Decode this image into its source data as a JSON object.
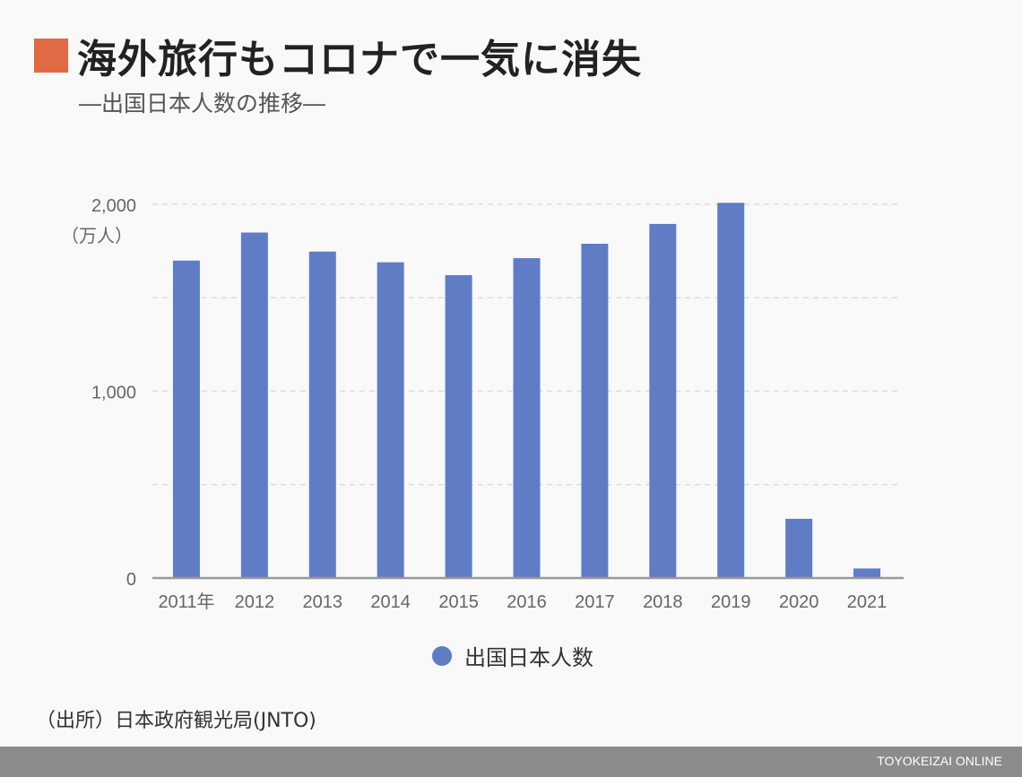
{
  "header": {
    "title": "海外旅行もコロナで一気に消失",
    "subtitle": "―出国日本人数の推移―"
  },
  "chart_data": {
    "type": "bar",
    "categories": [
      "2011年",
      "2012",
      "2013",
      "2014",
      "2015",
      "2016",
      "2017",
      "2018",
      "2019",
      "2020",
      "2021"
    ],
    "series": [
      {
        "name": "出国日本人数",
        "values": [
          1699,
          1849,
          1747,
          1690,
          1621,
          1712,
          1789,
          1895,
          2008,
          317,
          51
        ]
      }
    ],
    "ylim": [
      0,
      2000
    ],
    "yticks": [
      0,
      500,
      1000,
      1500,
      2000
    ],
    "ytick_labels": [
      "0",
      "",
      "1,000",
      "",
      "2,000"
    ],
    "yunit": "（万人）",
    "grid": true,
    "legend_position": "bottom-center",
    "bar_color": "#5f7cc5"
  },
  "source_note": "（出所）日本政府観光局(JNTO)",
  "footer": {
    "brand": "TOYOKEIZAI ONLINE"
  },
  "colors": {
    "accent": "#e06a44",
    "axis": "#999999",
    "grid": "#dddddd",
    "text": "#666666"
  }
}
